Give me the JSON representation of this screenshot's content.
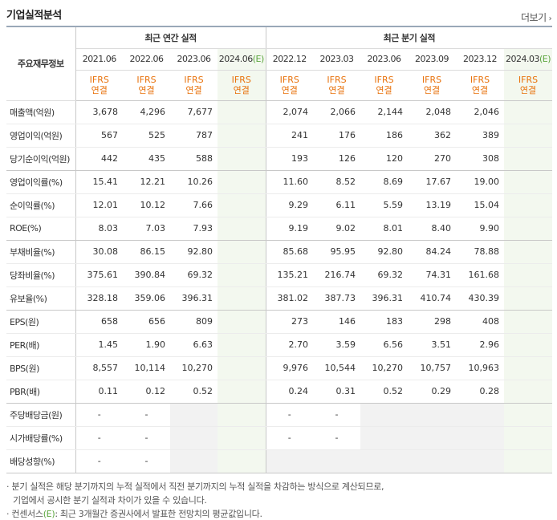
{
  "title": "기업실적분석",
  "more_label": "더보기",
  "header": {
    "row_label": "주요재무정보",
    "annual_group": "최근 연간 실적",
    "quarter_group": "최근 분기 실적",
    "annual_periods": [
      "2021.06",
      "2022.06",
      "2023.06",
      "2024.06"
    ],
    "quarter_periods": [
      "2022.12",
      "2023.03",
      "2023.06",
      "2023.09",
      "2023.12",
      "2024.03"
    ],
    "estimate_mark": "(E)",
    "ifrs_top": "IFRS",
    "ifrs_bottom": "연결"
  },
  "rows": [
    {
      "label": "매출액(억원)",
      "values": [
        "3,678",
        "4,296",
        "7,677",
        "",
        "2,074",
        "2,066",
        "2,144",
        "2,048",
        "2,046",
        ""
      ]
    },
    {
      "label": "영업이익(억원)",
      "values": [
        "567",
        "525",
        "787",
        "",
        "241",
        "176",
        "186",
        "362",
        "389",
        ""
      ]
    },
    {
      "label": "당기순이익(억원)",
      "values": [
        "442",
        "435",
        "588",
        "",
        "193",
        "126",
        "120",
        "270",
        "308",
        ""
      ]
    },
    {
      "label": "영업이익률(%)",
      "values": [
        "15.41",
        "12.21",
        "10.26",
        "",
        "11.60",
        "8.52",
        "8.69",
        "17.67",
        "19.00",
        ""
      ]
    },
    {
      "label": "순이익률(%)",
      "values": [
        "12.01",
        "10.12",
        "7.66",
        "",
        "9.29",
        "6.11",
        "5.59",
        "13.19",
        "15.04",
        ""
      ]
    },
    {
      "label": "ROE(%)",
      "values": [
        "8.03",
        "7.03",
        "7.93",
        "",
        "9.19",
        "9.02",
        "8.01",
        "8.40",
        "9.90",
        ""
      ]
    },
    {
      "label": "부채비율(%)",
      "values": [
        "30.08",
        "86.15",
        "92.80",
        "",
        "85.68",
        "95.95",
        "92.80",
        "84.24",
        "78.88",
        ""
      ]
    },
    {
      "label": "당좌비율(%)",
      "values": [
        "375.61",
        "390.84",
        "69.32",
        "",
        "135.21",
        "216.74",
        "69.32",
        "74.31",
        "161.68",
        ""
      ]
    },
    {
      "label": "유보율(%)",
      "values": [
        "328.18",
        "359.06",
        "396.31",
        "",
        "381.02",
        "387.73",
        "396.31",
        "410.74",
        "430.39",
        ""
      ]
    },
    {
      "label": "EPS(원)",
      "values": [
        "658",
        "656",
        "809",
        "",
        "273",
        "146",
        "183",
        "298",
        "408",
        ""
      ]
    },
    {
      "label": "PER(배)",
      "values": [
        "1.45",
        "1.90",
        "6.63",
        "",
        "2.70",
        "3.59",
        "6.56",
        "3.51",
        "2.96",
        ""
      ]
    },
    {
      "label": "BPS(원)",
      "values": [
        "8,557",
        "10,114",
        "10,270",
        "",
        "9,976",
        "10,544",
        "10,270",
        "10,757",
        "10,963",
        ""
      ]
    },
    {
      "label": "PBR(배)",
      "values": [
        "0.11",
        "0.12",
        "0.52",
        "",
        "0.24",
        "0.31",
        "0.52",
        "0.29",
        "0.28",
        ""
      ]
    },
    {
      "label": "주당배당금(원)",
      "values": [
        "-",
        "-",
        "",
        "",
        "-",
        "-",
        "",
        "",
        "",
        ""
      ]
    },
    {
      "label": "시가배당률(%)",
      "values": [
        "-",
        "-",
        "",
        "",
        "-",
        "-",
        "",
        "",
        "",
        ""
      ]
    },
    {
      "label": "배당성향(%)",
      "values": [
        "-",
        "-",
        "",
        "",
        "",
        "",
        "",
        "",
        "",
        ""
      ]
    }
  ],
  "notes": {
    "line1": "· 분기 실적은 해당 분기까지의 누적 실적에서 직전 분기까지의 누적 실적을 차감하는 방식으로 계산되므로,",
    "line2": "기업에서 공시한 분기 실적과 차이가 있을 수 있습니다.",
    "line3_prefix": "· 컨센서스",
    "line3_mark": "(E)",
    "line3_suffix": ": 최근 3개월간 증권사에서 발표한 전망치의 평균값입니다."
  }
}
